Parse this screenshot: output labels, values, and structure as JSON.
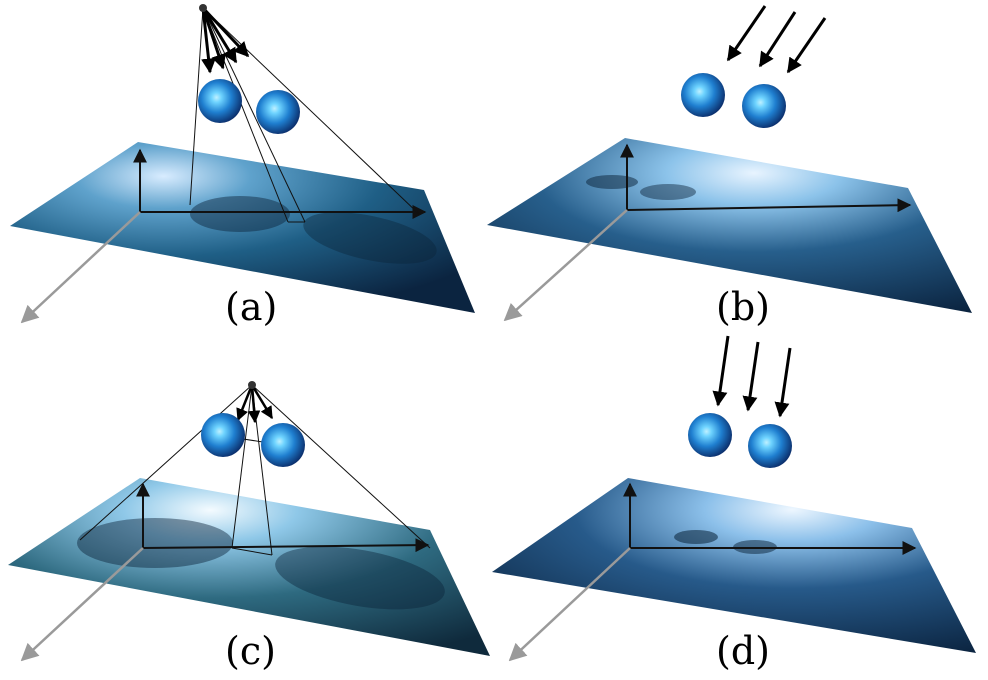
{
  "panels": [
    {
      "id": "a",
      "caption": "(a)",
      "light_type": "point-light",
      "light_position": "near"
    },
    {
      "id": "b",
      "caption": "(b)",
      "light_type": "directional-light",
      "light_direction": "oblique"
    },
    {
      "id": "c",
      "caption": "(c)",
      "light_type": "point-light",
      "light_position": "far"
    },
    {
      "id": "d",
      "caption": "(d)",
      "light_type": "directional-light",
      "light_direction": "steep"
    }
  ],
  "colors": {
    "plane_dark": "#0b2440",
    "plane_mid": "#1d5b84",
    "plane_light": "#d8ecff",
    "sphere_core": "#6fd4ff",
    "sphere_mid": "#1f7fd0",
    "sphere_rim": "#0a2a66",
    "axis": "#111111",
    "axis_depth": "#9a9a9a",
    "shadow": "#0a2238"
  }
}
